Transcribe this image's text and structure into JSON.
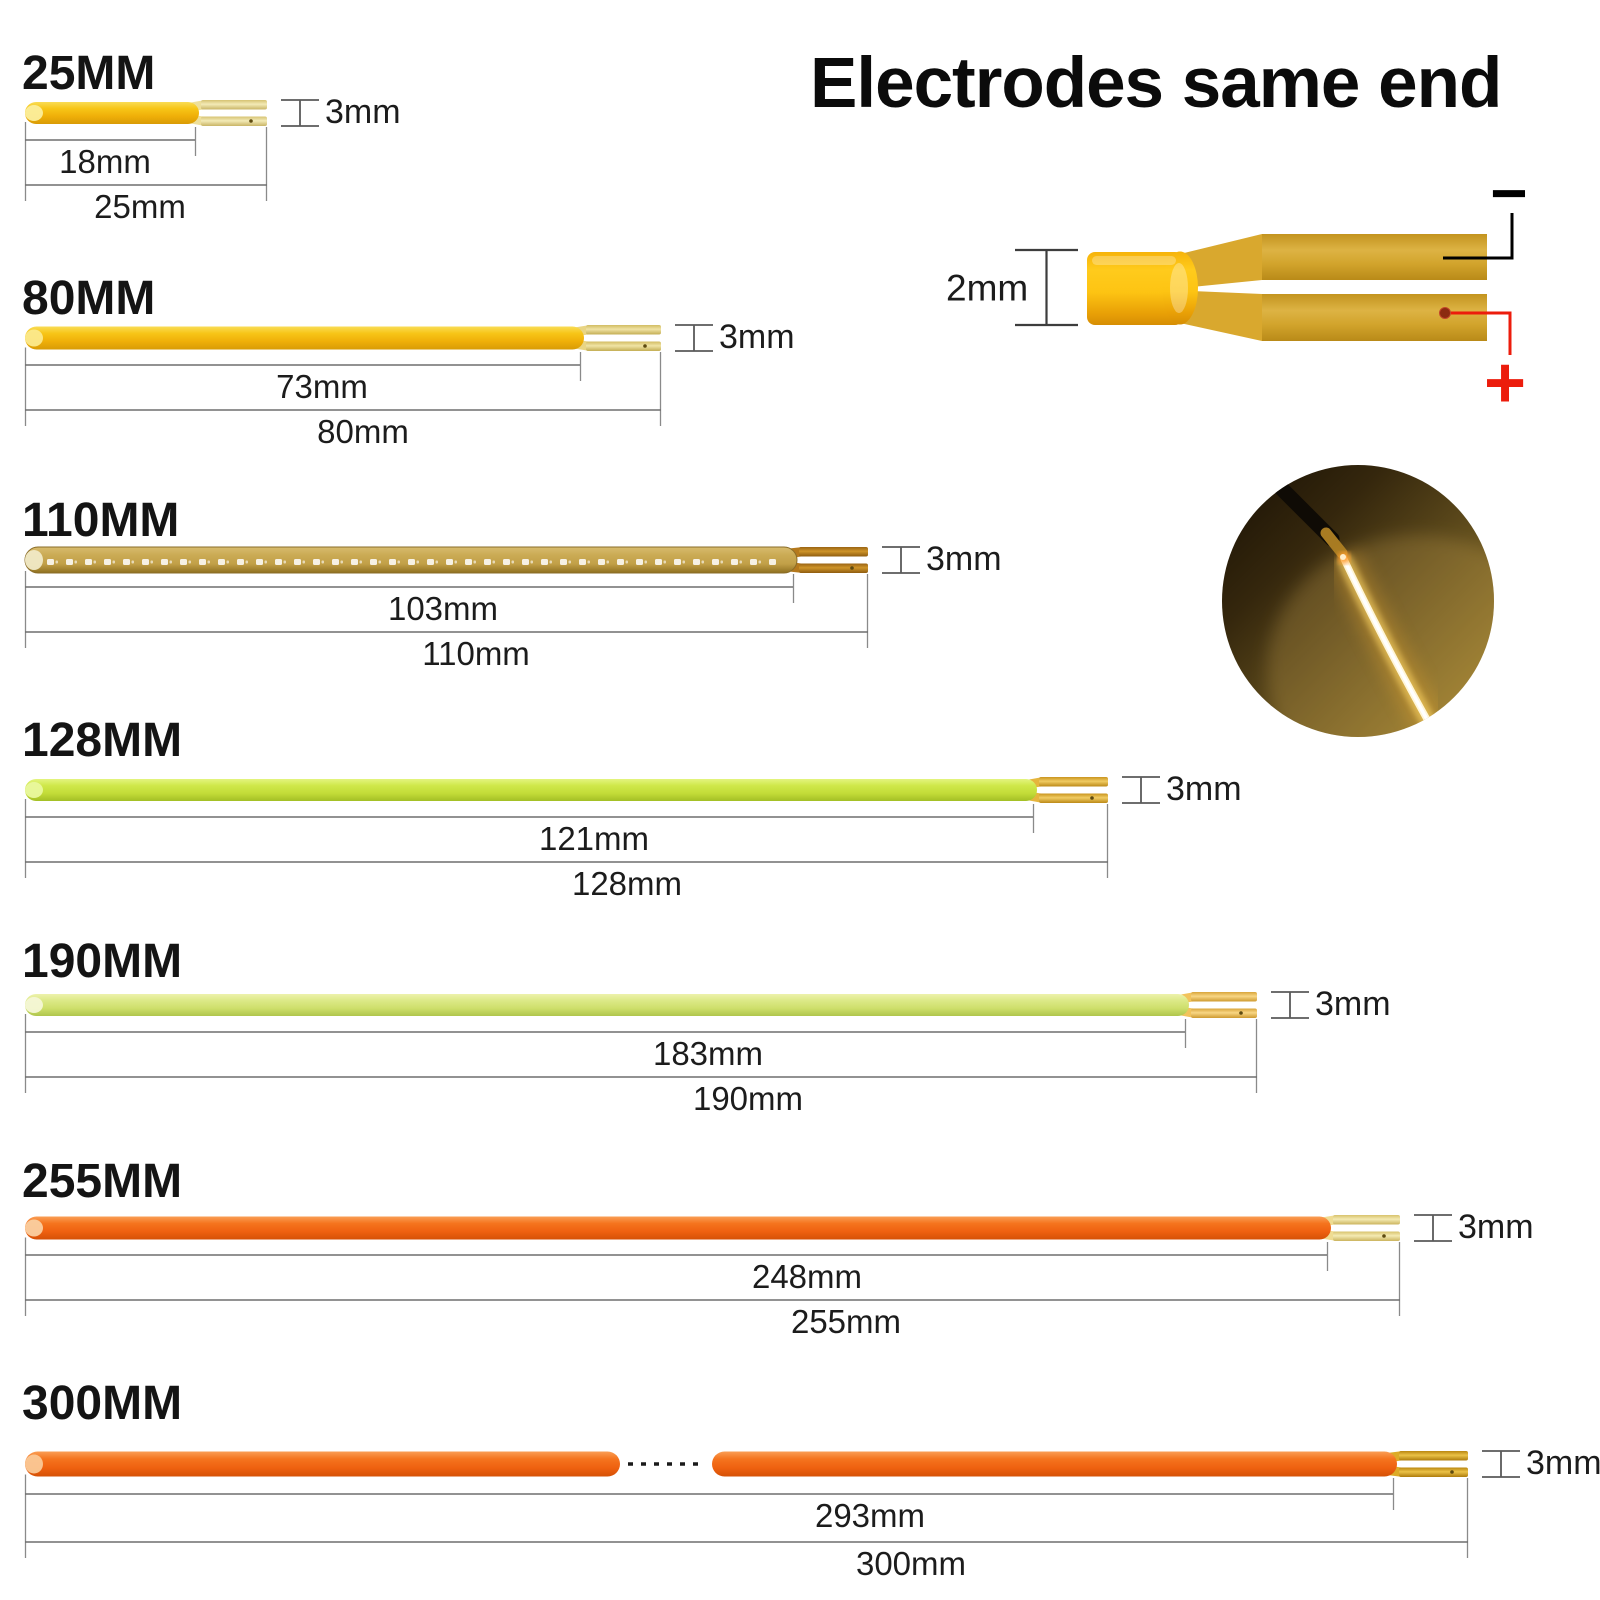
{
  "header": {
    "title": "Electrodes same end"
  },
  "electrode_detail": {
    "width_label": "2mm",
    "negative_label": "−",
    "positive_label": "+"
  },
  "sections": [
    {
      "label": "25MM",
      "filament_length": "18mm",
      "total_length": "25mm",
      "height": "3mm"
    },
    {
      "label": "80MM",
      "filament_length": "73mm",
      "total_length": "80mm",
      "height": "3mm"
    },
    {
      "label": "110MM",
      "filament_length": "103mm",
      "total_length": "110mm",
      "height": "3mm"
    },
    {
      "label": "128MM",
      "filament_length": "121mm",
      "total_length": "128mm",
      "height": "3mm"
    },
    {
      "label": "190MM",
      "filament_length": "183mm",
      "total_length": "190mm",
      "height": "3mm"
    },
    {
      "label": "255MM",
      "filament_length": "248mm",
      "total_length": "255mm",
      "height": "3mm"
    },
    {
      "label": "300MM",
      "filament_length": "293mm",
      "total_length": "300mm",
      "height": "3mm"
    }
  ],
  "colors": {
    "positive_red": "#EC1C0C",
    "negative_black": "#000000",
    "yellow_strip": "#F6C211",
    "tan_strip": "#C2A048",
    "green_strip": "#CFE84A",
    "pale_green_strip": "#DCE987",
    "orange_strip": "#F5741E",
    "gold_electrode": "#D9A82E"
  }
}
